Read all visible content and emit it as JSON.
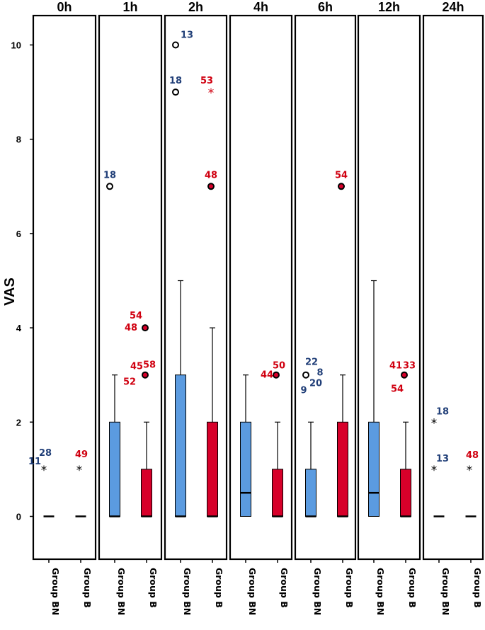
{
  "chart_data": {
    "type": "boxplot",
    "ylabel": "VAS",
    "ylim": [
      -0.9,
      10.5
    ],
    "yticks": [
      "0",
      "2",
      "4",
      "6",
      "8",
      "10"
    ],
    "group_labels": [
      "Group BN",
      "Group B"
    ],
    "colors": {
      "Group BN": "#5b9be0",
      "Group B": "#d7002a",
      "label_BN": "#213f78",
      "label_B": "#d00010"
    },
    "panels": [
      {
        "title": "0h",
        "boxes": [
          {
            "group": "Group BN",
            "min": 0,
            "q1": 0,
            "median": 0,
            "q3": 0,
            "max": 0
          },
          {
            "group": "Group B",
            "min": 0,
            "q1": 0,
            "median": 0,
            "q3": 0,
            "max": 0
          }
        ],
        "outliers": [
          {
            "group": "Group BN",
            "value": 1,
            "marker": "star",
            "labels": [
              "11",
              "28"
            ]
          },
          {
            "group": "Group B",
            "value": 1,
            "marker": "star",
            "labels": [
              "49"
            ]
          }
        ]
      },
      {
        "title": "1h",
        "boxes": [
          {
            "group": "Group BN",
            "min": 0,
            "q1": 0,
            "median": 0,
            "q3": 2,
            "max": 3
          },
          {
            "group": "Group B",
            "min": 0,
            "q1": 0,
            "median": 0,
            "q3": 1,
            "max": 2
          }
        ],
        "outliers": [
          {
            "group": "Group BN",
            "value": 7,
            "marker": "circle",
            "labels": [
              "18"
            ]
          },
          {
            "group": "Group B",
            "value": 4,
            "marker": "circle",
            "labels": [
              "54",
              "48"
            ]
          },
          {
            "group": "Group B",
            "value": 3,
            "marker": "circle",
            "labels": [
              "45",
              "58",
              "52"
            ]
          }
        ]
      },
      {
        "title": "2h",
        "boxes": [
          {
            "group": "Group BN",
            "min": 0,
            "q1": 0,
            "median": 0,
            "q3": 3,
            "max": 5
          },
          {
            "group": "Group B",
            "min": 0,
            "q1": 0,
            "median": 0,
            "q3": 2,
            "max": 4
          }
        ],
        "outliers": [
          {
            "group": "Group BN",
            "value": 10,
            "marker": "circle",
            "labels": [
              "13"
            ]
          },
          {
            "group": "Group BN",
            "value": 9,
            "marker": "circle",
            "labels": [
              "18"
            ]
          },
          {
            "group": "Group B",
            "value": 9,
            "marker": "star",
            "labels": [
              "53"
            ]
          },
          {
            "group": "Group B",
            "value": 7,
            "marker": "circle",
            "labels": [
              "48"
            ]
          }
        ]
      },
      {
        "title": "4h",
        "boxes": [
          {
            "group": "Group BN",
            "min": 0,
            "q1": 0,
            "median": 0.5,
            "q3": 2,
            "max": 3
          },
          {
            "group": "Group B",
            "min": 0,
            "q1": 0,
            "median": 0,
            "q3": 1,
            "max": 2
          }
        ],
        "outliers": [
          {
            "group": "Group B",
            "value": 3,
            "marker": "circle",
            "labels": [
              "44",
              "50"
            ]
          }
        ]
      },
      {
        "title": "6h",
        "boxes": [
          {
            "group": "Group BN",
            "min": 0,
            "q1": 0,
            "median": 0,
            "q3": 1,
            "max": 2
          },
          {
            "group": "Group B",
            "min": 0,
            "q1": 0,
            "median": 0,
            "q3": 2,
            "max": 3
          }
        ],
        "outliers": [
          {
            "group": "Group BN",
            "value": 3,
            "marker": "circle",
            "labels": [
              "22",
              "8",
              "20",
              "9"
            ]
          },
          {
            "group": "Group B",
            "value": 7,
            "marker": "circle",
            "labels": [
              "54"
            ]
          }
        ]
      },
      {
        "title": "12h",
        "boxes": [
          {
            "group": "Group BN",
            "min": 0,
            "q1": 0,
            "median": 0.5,
            "q3": 2,
            "max": 5
          },
          {
            "group": "Group B",
            "min": 0,
            "q1": 0,
            "median": 0,
            "q3": 1,
            "max": 2
          }
        ],
        "outliers": [
          {
            "group": "Group B",
            "value": 3,
            "marker": "circle",
            "labels": [
              "41",
              "33",
              "54"
            ]
          }
        ]
      },
      {
        "title": "24h",
        "boxes": [
          {
            "group": "Group BN",
            "min": 0,
            "q1": 0,
            "median": 0,
            "q3": 0,
            "max": 0
          },
          {
            "group": "Group B",
            "min": 0,
            "q1": 0,
            "median": 0,
            "q3": 0,
            "max": 0
          }
        ],
        "outliers": [
          {
            "group": "Group BN",
            "value": 2,
            "marker": "star",
            "labels": [
              "18"
            ]
          },
          {
            "group": "Group BN",
            "value": 1,
            "marker": "star",
            "labels": [
              "13"
            ]
          },
          {
            "group": "Group B",
            "value": 1,
            "marker": "star",
            "labels": [
              "48"
            ]
          }
        ]
      }
    ]
  }
}
